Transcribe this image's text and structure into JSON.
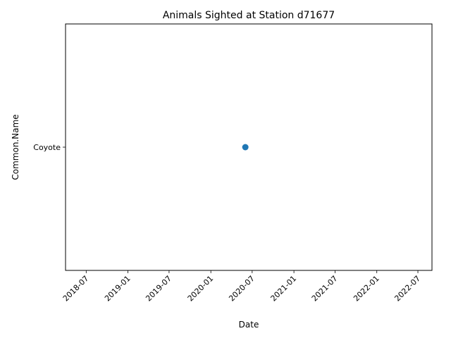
{
  "chart_data": {
    "type": "scatter",
    "title": "Animals Sighted at Station d71677",
    "xlabel": "Date",
    "ylabel": "Common.Name",
    "x_ticks": [
      "2018-07",
      "2019-01",
      "2019-07",
      "2020-01",
      "2020-07",
      "2021-01",
      "2021-07",
      "2022-01",
      "2022-07"
    ],
    "y_categories": [
      "Coyote"
    ],
    "points": [
      {
        "x": "2020-06-01",
        "y": "Coyote"
      }
    ],
    "xlim": [
      "2018-04-01",
      "2022-09-01"
    ],
    "grid": false,
    "marker_color": "#1f77b4"
  }
}
